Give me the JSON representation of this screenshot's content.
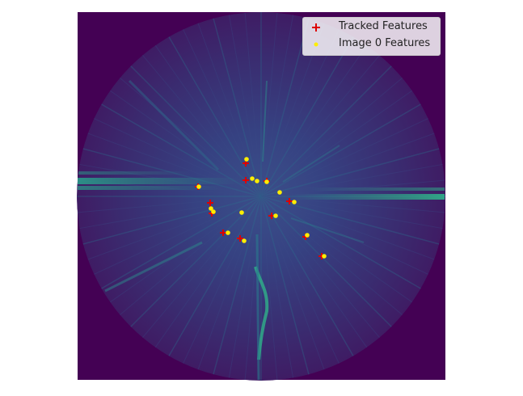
{
  "chart_data": {
    "type": "scatter",
    "title": "",
    "xlabel": "",
    "ylabel": "",
    "background": "polar sonar/radar intensity image (viridis colormap) within a circular field of view",
    "axes_visible": false,
    "grid": false,
    "legend_position": "top-right",
    "xlim": [
      0,
      455
    ],
    "ylim": [
      455,
      0
    ],
    "series": [
      {
        "name": "Tracked Features",
        "marker": "plus",
        "color": "#dd0000",
        "points": [
          [
            208,
            187
          ],
          [
            208,
            208
          ],
          [
            234,
            209
          ],
          [
            149,
            216
          ],
          [
            164,
            236
          ],
          [
            166,
            249
          ],
          [
            180,
            273
          ],
          [
            201,
            280
          ],
          [
            240,
            252
          ],
          [
            262,
            234
          ],
          [
            282,
            278
          ],
          [
            302,
            302
          ]
        ]
      },
      {
        "name": "Image 0 Features",
        "marker": "dot",
        "color": "#ffee00",
        "points": [
          [
            209,
            182
          ],
          [
            216,
            206
          ],
          [
            222,
            209
          ],
          [
            234,
            210
          ],
          [
            150,
            216
          ],
          [
            250,
            223
          ],
          [
            268,
            235
          ],
          [
            203,
            248
          ],
          [
            165,
            243
          ],
          [
            168,
            247
          ],
          [
            245,
            252
          ],
          [
            186,
            273
          ],
          [
            206,
            283
          ],
          [
            284,
            276
          ],
          [
            305,
            302
          ]
        ]
      }
    ]
  },
  "colors": {
    "image_background": "#440154",
    "viridis_green": "#22a884",
    "viridis_yellow": "#fde725",
    "tracked_marker": "#dd0000",
    "image0_marker": "#ffee00"
  },
  "legend": {
    "items": [
      {
        "label": "Tracked Features",
        "icon": "plus-marker-icon",
        "color": "#dd0000"
      },
      {
        "label": "Image 0 Features",
        "icon": "dot-marker-icon",
        "color": "#ffee00"
      }
    ]
  }
}
